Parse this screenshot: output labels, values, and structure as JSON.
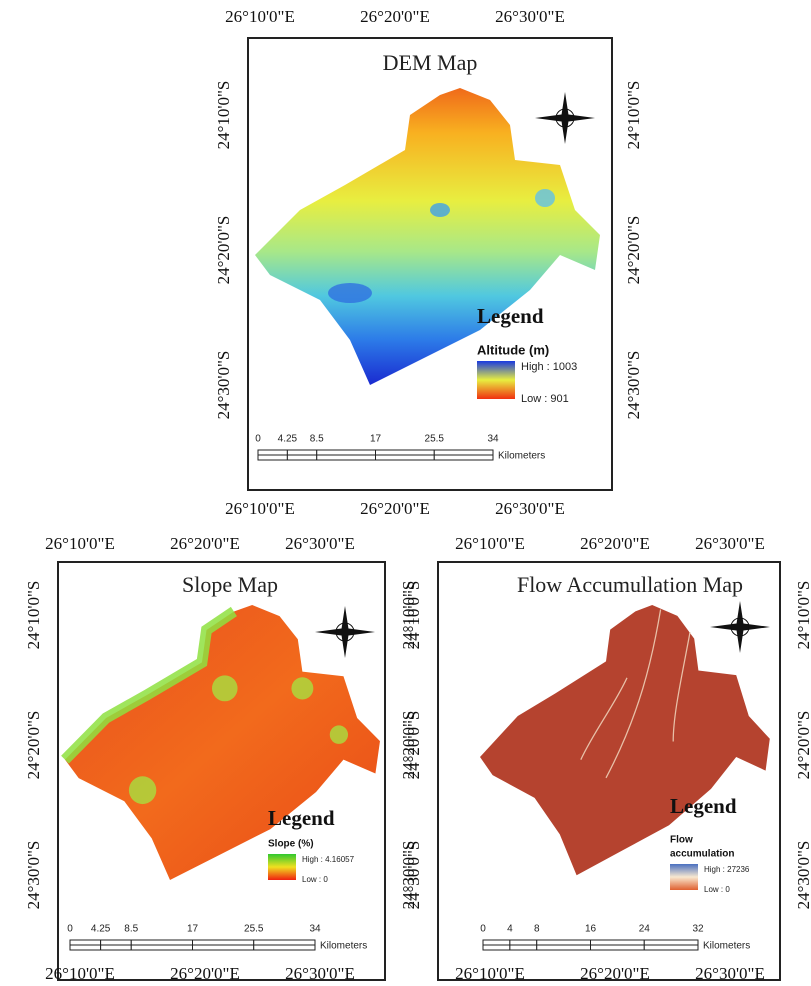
{
  "panels": [
    {
      "title": "DEM Map",
      "x_labels_top": [
        "26°10'0\"E",
        "26°20'0\"E",
        "26°30'0\"E"
      ],
      "x_labels_bottom": [
        "26°10'0\"E",
        "26°20'0\"E",
        "26°30'0\"E"
      ],
      "y_labels_left": [
        "24°10'0\"S",
        "24°20'0\"S",
        "24°30'0\"S"
      ],
      "y_labels_right": [
        "24°10'0\"S",
        "24°20'0\"S",
        "24°30'0\"S"
      ],
      "legend": {
        "title": "Legend",
        "field_lines": [
          "Altitude (m)"
        ],
        "high": "High : 1003",
        "low": "Low : 901"
      },
      "scale": {
        "labels": [
          0,
          4.25,
          8.5,
          17,
          25.5,
          34
        ],
        "unit": "Kilometers"
      }
    },
    {
      "title": "Slope Map",
      "x_labels_top": [
        "26°10'0\"E",
        "26°20'0\"E",
        "26°30'0\"E"
      ],
      "x_labels_bottom": [
        "26°10'0\"E",
        "26°20'0\"E",
        "26°30'0\"E"
      ],
      "y_labels_left": [
        "24°10'0\"S",
        "24°20'0\"S",
        "24°30'0\"S"
      ],
      "y_labels_right": [
        "24°10'0\"S",
        "24°20'0\"S",
        "24°30'0\"S"
      ],
      "legend": {
        "title": "Legend",
        "field_lines": [
          "Slope (%)"
        ],
        "high": "High : 4.16057",
        "low": "Low : 0"
      },
      "scale": {
        "labels": [
          0,
          4.25,
          8.5,
          17,
          25.5,
          34
        ],
        "unit": "Kilometers"
      }
    },
    {
      "title": "Flow Accumullation Map",
      "x_labels_top": [
        "26°10'0\"E",
        "26°20'0\"E",
        "26°30'0\"E"
      ],
      "x_labels_bottom": [
        "26°10'0\"E",
        "26°20'0\"E",
        "26°30'0\"E"
      ],
      "y_labels_left": [
        "24°10'0\"S",
        "24°20'0\"S",
        "24°30'0\"S"
      ],
      "y_labels_right": [
        "24°10'0\"S",
        "24°20'0\"S",
        "24°30'0\"S"
      ],
      "legend": {
        "title": "Legend",
        "field_lines": [
          "Flow",
          "accumulation"
        ],
        "high": "High : 27236",
        "low": "Low : 0"
      },
      "scale": {
        "labels": [
          0,
          4,
          8,
          16,
          24,
          32
        ],
        "unit": "Kilometers"
      }
    }
  ]
}
